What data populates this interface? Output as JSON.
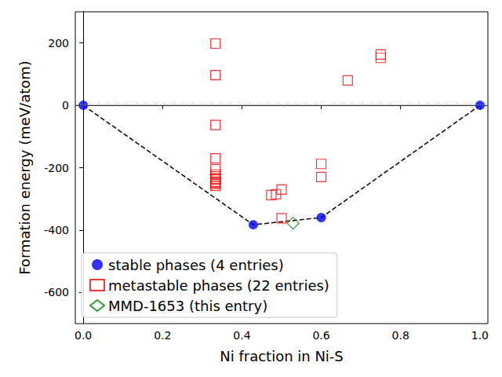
{
  "chart_data": {
    "type": "scatter",
    "x_label": "Ni fraction in Ni-S",
    "y_label": "Formation energy (meV/atom)",
    "xlim": [
      -0.02,
      1.02
    ],
    "xticks": [
      {
        "value": 0,
        "label": "0.0"
      },
      0.2,
      0.4,
      0.6,
      0.8,
      {
        "value": 1,
        "label": "1.0"
      }
    ],
    "ylim": [
      -700,
      300
    ],
    "yticks": [
      -600,
      -400,
      -200,
      0,
      200
    ],
    "grid": false,
    "legend": "lower left",
    "series": [
      {
        "name": "stable phases (4 entries)",
        "color": "#0000ff",
        "marker": "circle",
        "line_style": "dashed",
        "values": [
          [
            0,
            0
          ],
          [
            0.4286,
            -383
          ],
          [
            0.6,
            -360
          ],
          [
            1,
            0
          ]
        ]
      },
      {
        "name": "metastable phases (22 entries)",
        "color": "#ff0000",
        "marker": "square",
        "values": [
          [
            0.3333,
            198
          ],
          [
            0.3333,
            97
          ],
          [
            0.3333,
            -63
          ],
          [
            0.3333,
            -170
          ],
          [
            0.3333,
            -205
          ],
          [
            0.3333,
            -222
          ],
          [
            0.3333,
            -228
          ],
          [
            0.3333,
            -235
          ],
          [
            0.3333,
            -238
          ],
          [
            0.3333,
            -245
          ],
          [
            0.3333,
            -248
          ],
          [
            0.3333,
            -252
          ],
          [
            0.3333,
            -258
          ],
          [
            0.474,
            -288
          ],
          [
            0.486,
            -285
          ],
          [
            0.5,
            -270
          ],
          [
            0.5,
            -362
          ],
          [
            0.6,
            -188
          ],
          [
            0.6,
            -230
          ],
          [
            0.6667,
            80
          ],
          [
            0.75,
            163
          ],
          [
            0.75,
            152
          ]
        ]
      },
      {
        "name": "MMD-1653 (this entry)",
        "color": "#008000",
        "marker": "diamond",
        "values": [
          [
            0.529,
            -378
          ]
        ]
      }
    ]
  }
}
